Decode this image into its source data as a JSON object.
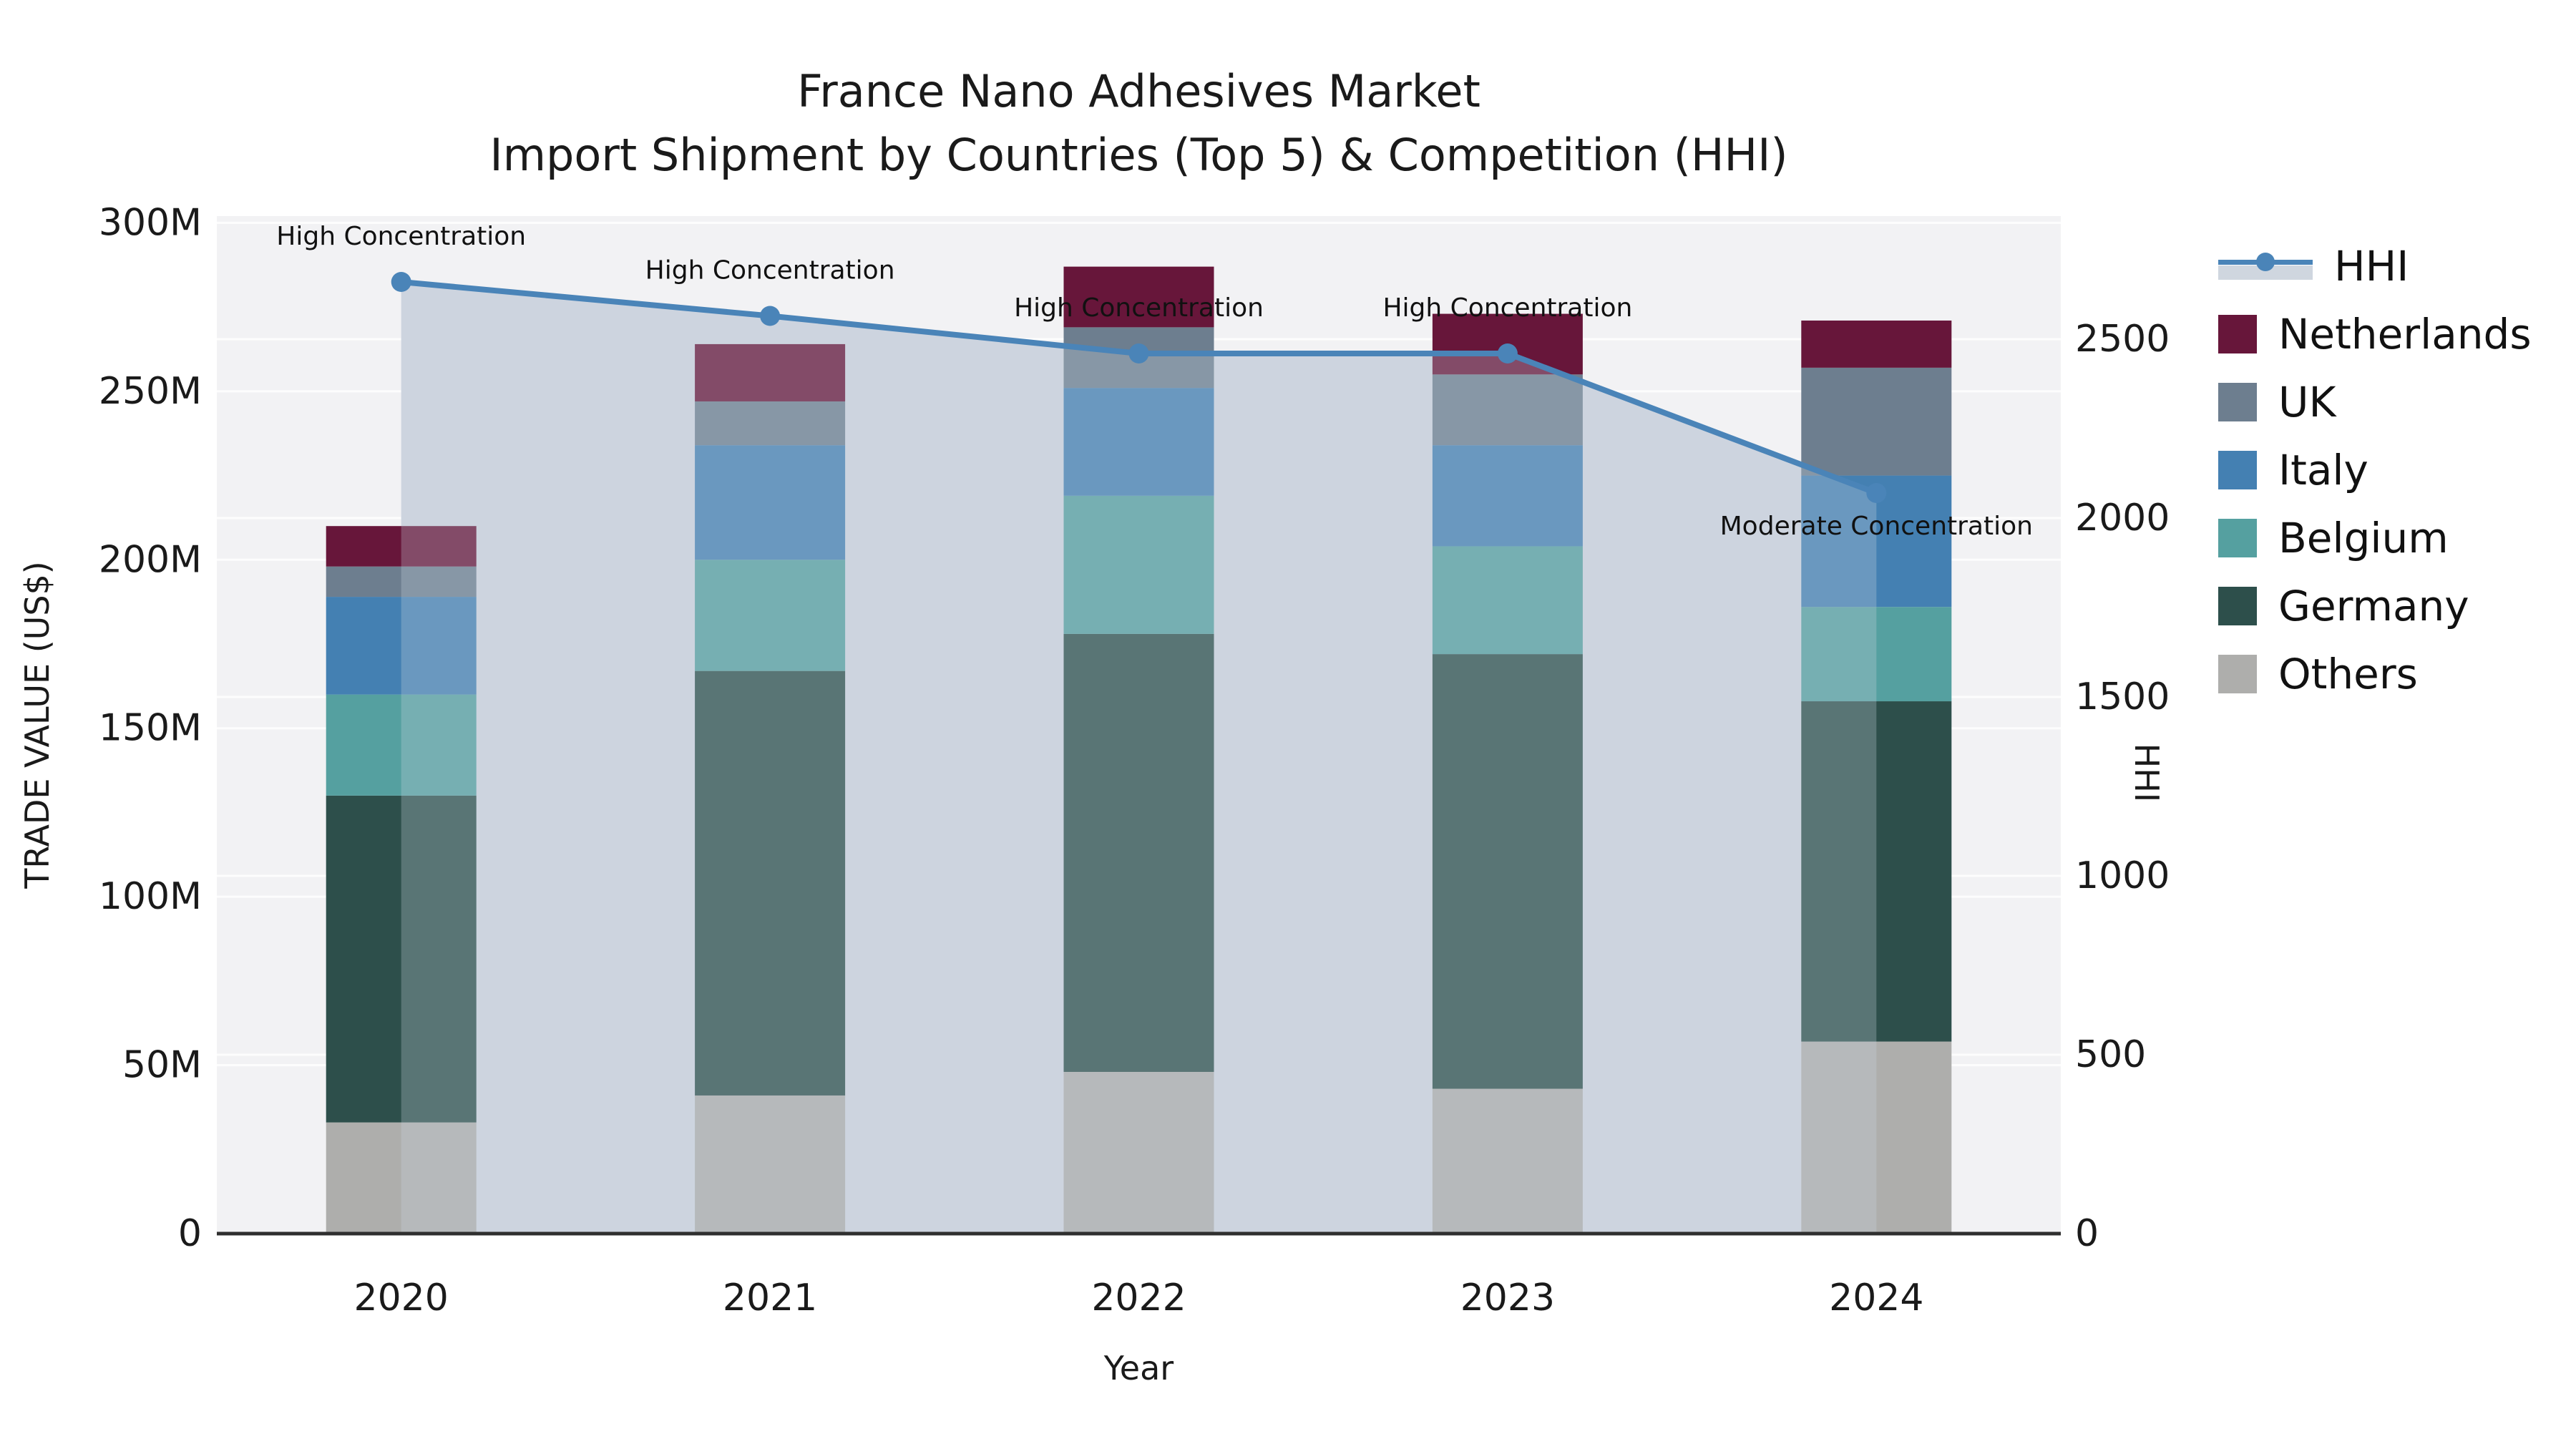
{
  "title": {
    "line1": "France Nano Adhesives Market",
    "line2": "Import Shipment by Countries (Top 5) & Competition (HHI)"
  },
  "legend": {
    "items": [
      {
        "label": "HHI",
        "type": "line",
        "color": "#4a84b8"
      },
      {
        "label": "Netherlands",
        "type": "box",
        "color": "#67163a"
      },
      {
        "label": "UK",
        "type": "box",
        "color": "#6d7e8f"
      },
      {
        "label": "Italy",
        "type": "box",
        "color": "#4480b2"
      },
      {
        "label": "Belgium",
        "type": "box",
        "color": "#55a0a0"
      },
      {
        "label": "Germany",
        "type": "box",
        "color": "#2d4f4b"
      },
      {
        "label": "Others",
        "type": "box",
        "color": "#aeaeac"
      }
    ]
  },
  "chart_data": {
    "type": "combo_stacked_bar_line",
    "title": "France Nano Adhesives Market — Import Shipment by Countries (Top 5) & Competition (HHI)",
    "categories": [
      "2020",
      "2021",
      "2022",
      "2023",
      "2024"
    ],
    "x_label": "Year",
    "left_axis": {
      "label": "TRADE VALUE (US$)",
      "unit": "M US$",
      "max": 302,
      "tick_values": [
        0,
        50,
        100,
        150,
        200,
        250,
        300
      ],
      "tick_labels": [
        "0",
        "50M",
        "100M",
        "150M",
        "200M",
        "250M",
        "300M"
      ]
    },
    "right_axis": {
      "label": "HHI",
      "max": 2844,
      "tick_values": [
        0,
        500,
        1000,
        1500,
        2000,
        2500
      ],
      "tick_labels": [
        "0",
        "500",
        "1000",
        "1500",
        "2000",
        "2500"
      ]
    },
    "bar_series": [
      {
        "name": "Others",
        "color": "#aeaeac",
        "values": [
          33,
          41,
          48,
          43,
          57
        ]
      },
      {
        "name": "Germany",
        "color": "#2d4f4b",
        "values": [
          97,
          126,
          130,
          129,
          101
        ]
      },
      {
        "name": "Belgium",
        "color": "#55a0a0",
        "values": [
          30,
          33,
          41,
          32,
          28
        ]
      },
      {
        "name": "Italy",
        "color": "#4480b2",
        "values": [
          29,
          34,
          32,
          30,
          39
        ]
      },
      {
        "name": "UK",
        "color": "#6d7e8f",
        "values": [
          9,
          13,
          18,
          21,
          32
        ]
      },
      {
        "name": "Netherlands",
        "color": "#67163a",
        "values": [
          12,
          17,
          18,
          18,
          14
        ]
      }
    ],
    "bar_totals": [
      210,
      264,
      287,
      273,
      271
    ],
    "line_series": {
      "name": "HHI",
      "values": [
        2660,
        2565,
        2460,
        2460,
        2070
      ],
      "color": "#4a84b8",
      "area_color": "#cdd3de",
      "wash_color": "rgba(206,214,227,0.28)"
    },
    "annotations": [
      {
        "text": "High Concentration",
        "category": "2020",
        "position": "above"
      },
      {
        "text": "High Concentration",
        "category": "2021",
        "position": "above"
      },
      {
        "text": "High Concentration",
        "category": "2022",
        "position": "above"
      },
      {
        "text": "High Concentration",
        "category": "2023",
        "position": "above"
      },
      {
        "text": "Moderate Concentration",
        "category": "2024",
        "position": "below"
      }
    ],
    "plot_bg": "#f2f2f4",
    "grid_color": "#ffffff",
    "axis_line_color": "#2f2f2f",
    "text_color": "#1a1a1a",
    "legend_position": "right"
  }
}
